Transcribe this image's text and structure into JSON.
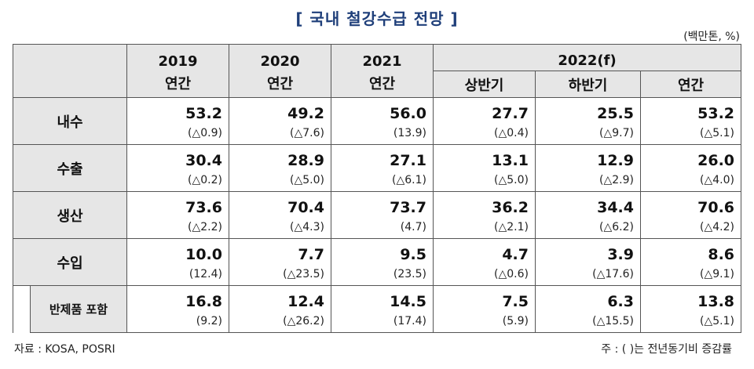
{
  "title": "[ 국내 철강수급 전망 ]",
  "unit": "(백만톤, %)",
  "headers": {
    "years": [
      "2019",
      "2020",
      "2021",
      "2022(f)"
    ],
    "annual": "연간",
    "h1": "상반기",
    "h2": "하반기"
  },
  "rows": [
    {
      "label": "내수",
      "values": [
        "53.2",
        "49.2",
        "56.0",
        "27.7",
        "25.5",
        "53.2"
      ],
      "changes": [
        "(△0.9)",
        "(△7.6)",
        "(13.9)",
        "(△0.4)",
        "(△9.7)",
        "(△5.1)"
      ]
    },
    {
      "label": "수출",
      "values": [
        "30.4",
        "28.9",
        "27.1",
        "13.1",
        "12.9",
        "26.0"
      ],
      "changes": [
        "(△0.2)",
        "(△5.0)",
        "(△6.1)",
        "(△5.0)",
        "(△2.9)",
        "(△4.0)"
      ]
    },
    {
      "label": "생산",
      "values": [
        "73.6",
        "70.4",
        "73.7",
        "36.2",
        "34.4",
        "70.6"
      ],
      "changes": [
        "(△2.2)",
        "(△4.3)",
        "(4.7)",
        "(△2.1)",
        "(△6.2)",
        "(△4.2)"
      ]
    },
    {
      "label": "수입",
      "values": [
        "10.0",
        "7.7",
        "9.5",
        "4.7",
        "3.9",
        "8.6"
      ],
      "changes": [
        "(12.4)",
        "(△23.5)",
        "(23.5)",
        "(△0.6)",
        "(△17.6)",
        "(△9.1)"
      ]
    },
    {
      "label": "반제품 포함",
      "values": [
        "16.8",
        "12.4",
        "14.5",
        "7.5",
        "6.3",
        "13.8"
      ],
      "changes": [
        "(9.2)",
        "(△26.2)",
        "(17.4)",
        "(5.9)",
        "(△15.5)",
        "(△5.1)"
      ]
    }
  ],
  "source": "자료 : KOSA, POSRI",
  "note": "주 : (  )는 전년동기비 증감률"
}
